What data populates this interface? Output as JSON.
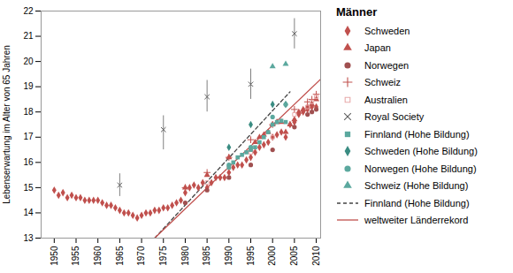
{
  "chart_data": {
    "type": "scatter",
    "title": "Männer",
    "ylabel": "Lebenserwartung im Alter von 65 Jahren",
    "xlim": [
      1947,
      2011
    ],
    "ylim": [
      13,
      22
    ],
    "xticks": [
      1950,
      1955,
      1960,
      1965,
      1970,
      1975,
      1980,
      1985,
      1990,
      1995,
      2000,
      2005,
      2010
    ],
    "yticks": [
      13,
      14,
      15,
      16,
      17,
      18,
      19,
      20,
      21,
      22
    ],
    "grid": false,
    "legend": "right",
    "series": [
      {
        "name": "Schweden",
        "type": "scatter",
        "marker": "diamond",
        "color": "#c0504d",
        "values": [
          [
            1950,
            14.9
          ],
          [
            1951,
            14.7
          ],
          [
            1952,
            14.8
          ],
          [
            1953,
            14.6
          ],
          [
            1954,
            14.7
          ],
          [
            1955,
            14.6
          ],
          [
            1956,
            14.6
          ],
          [
            1957,
            14.5
          ],
          [
            1958,
            14.5
          ],
          [
            1959,
            14.5
          ],
          [
            1960,
            14.5
          ],
          [
            1961,
            14.4
          ],
          [
            1962,
            14.3
          ],
          [
            1963,
            14.3
          ],
          [
            1964,
            14.2
          ],
          [
            1965,
            14.1
          ],
          [
            1966,
            14.0
          ],
          [
            1967,
            14.0
          ],
          [
            1968,
            13.9
          ],
          [
            1969,
            13.8
          ],
          [
            1970,
            13.9
          ],
          [
            1971,
            14.0
          ],
          [
            1972,
            14.0
          ],
          [
            1973,
            14.1
          ],
          [
            1974,
            14.1
          ],
          [
            1975,
            14.2
          ],
          [
            1976,
            14.2
          ],
          [
            1977,
            14.3
          ],
          [
            1978,
            14.4
          ],
          [
            1979,
            14.5
          ],
          [
            1980,
            14.8
          ],
          [
            1981,
            15.0
          ],
          [
            1982,
            15.1
          ],
          [
            1983,
            15.0
          ],
          [
            1984,
            15.2
          ],
          [
            1985,
            15.0
          ],
          [
            1986,
            15.2
          ],
          [
            1987,
            15.4
          ],
          [
            1988,
            15.4
          ],
          [
            1989,
            15.4
          ],
          [
            1990,
            15.6
          ],
          [
            1991,
            15.8
          ],
          [
            1992,
            15.9
          ],
          [
            1993,
            15.9
          ],
          [
            1994,
            16.1
          ],
          [
            1995,
            16.2
          ],
          [
            1996,
            16.4
          ],
          [
            1997,
            16.6
          ],
          [
            1998,
            16.7
          ],
          [
            1999,
            16.8
          ],
          [
            2000,
            17.0
          ],
          [
            2001,
            17.1
          ],
          [
            2002,
            17.2
          ],
          [
            2003,
            17.0
          ],
          [
            2004,
            17.5
          ],
          [
            2005,
            17.6
          ],
          [
            2006,
            17.9
          ],
          [
            2007,
            18.0
          ],
          [
            2008,
            18.1
          ],
          [
            2009,
            18.2
          ],
          [
            2010,
            18.2
          ]
        ]
      },
      {
        "name": "Japan",
        "type": "scatter",
        "marker": "triangle",
        "color": "#c0504d",
        "values": [
          [
            1980,
            15.0
          ],
          [
            1985,
            15.5
          ],
          [
            1990,
            16.2
          ],
          [
            1995,
            16.5
          ],
          [
            1996,
            16.8
          ],
          [
            1997,
            17.0
          ],
          [
            1998,
            17.1
          ],
          [
            1999,
            17.2
          ],
          [
            2000,
            17.5
          ],
          [
            2001,
            17.6
          ],
          [
            2002,
            17.6
          ],
          [
            2003,
            17.2
          ],
          [
            2004,
            17.5
          ],
          [
            2005,
            17.7
          ],
          [
            2006,
            18.0
          ],
          [
            2007,
            18.1
          ],
          [
            2008,
            18.2
          ],
          [
            2009,
            18.3
          ],
          [
            2010,
            18.5
          ]
        ]
      },
      {
        "name": "Norwegen",
        "type": "scatter",
        "marker": "circle",
        "color": "#A05050",
        "values": [
          [
            1980,
            14.4
          ],
          [
            1985,
            14.9
          ],
          [
            1990,
            15.4
          ],
          [
            1995,
            15.9
          ],
          [
            2000,
            16.5
          ],
          [
            2005,
            17.4
          ],
          [
            2008,
            17.9
          ],
          [
            2009,
            18.0
          ],
          [
            2010,
            18.1
          ]
        ]
      },
      {
        "name": "Schweiz",
        "type": "scatter",
        "marker": "plus",
        "color": "#c0504d",
        "values": [
          [
            1980,
            15.0
          ],
          [
            1985,
            15.6
          ],
          [
            1990,
            16.2
          ],
          [
            1995,
            16.9
          ],
          [
            2000,
            17.5
          ],
          [
            2005,
            18.1
          ],
          [
            2008,
            18.4
          ],
          [
            2009,
            18.5
          ],
          [
            2010,
            18.7
          ]
        ]
      },
      {
        "name": "Australien",
        "type": "scatter",
        "marker": "square-open",
        "color": "#E8AAAA",
        "values": [
          [
            1985,
            15.2
          ],
          [
            1990,
            15.8
          ],
          [
            1995,
            16.4
          ],
          [
            2000,
            17.0
          ],
          [
            2005,
            17.9
          ],
          [
            2008,
            18.2
          ],
          [
            2009,
            18.4
          ],
          [
            2010,
            18.6
          ]
        ]
      },
      {
        "name": "Royal Society",
        "type": "errorbar",
        "marker": "x",
        "color": "#606060",
        "values": [
          [
            1965,
            15.1
          ],
          [
            1975,
            17.3
          ],
          [
            1985,
            18.6
          ],
          [
            1995,
            19.1
          ],
          [
            2005,
            21.1
          ]
        ],
        "error_low": [
          14.65,
          16.5,
          18.0,
          18.5,
          20.5
        ],
        "error_high": [
          15.55,
          17.85,
          19.25,
          19.7,
          21.7
        ]
      },
      {
        "name": "Finnland (Hohe Bildung)",
        "type": "scatter",
        "marker": "square",
        "color": "#5BA89E",
        "values": [
          [
            1990,
            15.8
          ],
          [
            1991,
            16.0
          ],
          [
            1992,
            16.2
          ],
          [
            1993,
            16.3
          ],
          [
            1994,
            16.4
          ],
          [
            1995,
            16.5
          ],
          [
            1996,
            16.6
          ],
          [
            1997,
            16.8
          ],
          [
            1998,
            17.0
          ],
          [
            1999,
            17.2
          ],
          [
            2000,
            17.5
          ],
          [
            2001,
            17.6
          ],
          [
            2002,
            17.65
          ],
          [
            2003,
            17.6
          ]
        ]
      },
      {
        "name": "Schweden (Hohe Bildung)",
        "type": "scatter",
        "marker": "diamond",
        "color": "#3A8C82",
        "values": [
          [
            1990,
            16.6
          ],
          [
            1995,
            17.5
          ],
          [
            2000,
            18.3
          ],
          [
            2003,
            18.3
          ]
        ]
      },
      {
        "name": "Norwegen (Hohe Bildung)",
        "type": "scatter",
        "marker": "circle",
        "color": "#5BA89E",
        "values": [
          [
            1990,
            15.9
          ],
          [
            1995,
            16.6
          ],
          [
            2000,
            17.8
          ],
          [
            2003,
            18.3
          ]
        ]
      },
      {
        "name": "Schweiz (Hohe Bildung)",
        "type": "scatter",
        "marker": "triangle",
        "color": "#5BA89E",
        "values": [
          [
            2000,
            19.8
          ],
          [
            2003,
            19.9
          ]
        ]
      },
      {
        "name": "Finnland (Hohe Bildung)",
        "type": "line",
        "line_style": "dashed",
        "color": "#444444",
        "values": [
          [
            1973,
            13.0
          ],
          [
            2004,
            18.8
          ]
        ]
      },
      {
        "name": "weltweiter Länderrekord",
        "type": "line",
        "line_style": "solid",
        "color": "#c0504d",
        "values": [
          [
            1973,
            13.0
          ],
          [
            2011,
            19.3
          ]
        ]
      }
    ]
  }
}
